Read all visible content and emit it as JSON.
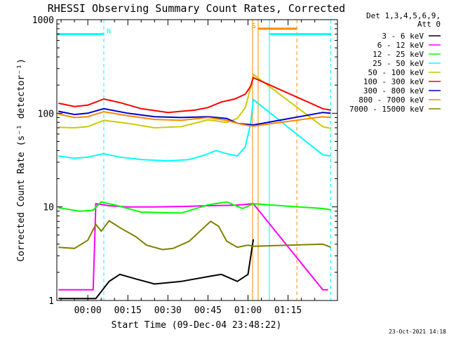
{
  "title": "RHESSI Observing Summary Count Rates, Corrected",
  "legend_header": [
    "Det 1,3,4,5,6,9,",
    "Att 0"
  ],
  "timestamp": "23-Oct-2021 14:18",
  "chart_data": {
    "type": "line",
    "title": "RHESSI Observing Summary Count Rates, Corrected",
    "xlabel": "Start Time (09-Dec-04 23:48:22)",
    "ylabel": "Corrected Count Rate (s⁻¹ detector⁻¹)",
    "yscale": "log",
    "ylim": [
      1,
      1000
    ],
    "y_ticks": [
      "1",
      "10",
      "100",
      "1000"
    ],
    "xlim_minutes": [
      -11.6,
      93.5
    ],
    "x_tick_minutes": [
      0,
      15,
      30,
      45,
      60,
      75
    ],
    "x_tick_labels": [
      "00:00",
      "00:15",
      "00:30",
      "00:45",
      "01:00",
      "01:15"
    ],
    "grid": false,
    "legend_position": "right",
    "series": [
      {
        "name": "3 - 6 keV",
        "color": "#000000",
        "x": [
          -11,
          -4,
          3,
          8,
          12,
          18,
          25,
          35,
          45,
          50,
          56,
          60,
          62
        ],
        "y": [
          1.05,
          1.05,
          1.05,
          1.6,
          1.9,
          1.7,
          1.5,
          1.6,
          1.8,
          1.9,
          1.6,
          1.9,
          4.5
        ]
      },
      {
        "name": "6 - 12 keV",
        "color": "#ff00ff",
        "x": [
          -11,
          2,
          3,
          8,
          15,
          25,
          35,
          45,
          55,
          62,
          88,
          90
        ],
        "y": [
          1.3,
          1.3,
          10.8,
          10.3,
          10.0,
          10.0,
          10.1,
          10.3,
          10.4,
          10.8,
          1.3,
          1.3
        ]
      },
      {
        "name": "12 - 25 keV",
        "color": "#00ff00",
        "x": [
          -11,
          -3,
          2,
          5,
          10,
          20,
          35,
          45,
          52,
          58,
          62,
          88,
          91
        ],
        "y": [
          9.8,
          9.0,
          9.2,
          11.3,
          10.5,
          8.8,
          8.6,
          10.5,
          11.3,
          9.6,
          10.8,
          9.6,
          9.3
        ]
      },
      {
        "name": "25 - 50 keV",
        "color": "#00ffff",
        "x": [
          -11,
          -5,
          0,
          6,
          12,
          20,
          30,
          38,
          44,
          48,
          52,
          56,
          59,
          61,
          62,
          88,
          91
        ],
        "y": [
          35,
          33,
          34,
          37,
          34,
          32,
          31,
          32,
          36,
          40,
          37,
          35,
          44,
          78,
          140,
          36,
          35
        ]
      },
      {
        "name": "50 - 100 keV",
        "color": "#cccc00",
        "x": [
          -11,
          -5,
          0,
          6,
          15,
          25,
          35,
          45,
          52,
          56,
          59,
          61,
          62,
          88,
          91
        ],
        "y": [
          71,
          70,
          72,
          84,
          78,
          70,
          72,
          85,
          80,
          88,
          115,
          190,
          260,
          72,
          69
        ]
      },
      {
        "name": "100 - 300 keV",
        "color": "#ff0000",
        "x": [
          -11,
          -5,
          0,
          6,
          12,
          20,
          30,
          40,
          45,
          50,
          55,
          59,
          61,
          62,
          88,
          91
        ],
        "y": [
          128,
          118,
          122,
          142,
          130,
          112,
          102,
          108,
          115,
          132,
          142,
          160,
          195,
          240,
          112,
          108
        ]
      },
      {
        "name": "300 - 800 keV",
        "color": "#0000cc",
        "x": [
          -11,
          -5,
          0,
          6,
          15,
          25,
          35,
          45,
          52,
          56,
          60,
          62,
          88,
          91
        ],
        "y": [
          105,
          97,
          100,
          112,
          100,
          92,
          90,
          92,
          88,
          78,
          76,
          75,
          102,
          100
        ]
      },
      {
        "name": "800 - 7000 keV",
        "color": "#ff8800",
        "x": [
          -11,
          -5,
          0,
          6,
          15,
          25,
          35,
          45,
          52,
          56,
          60,
          62,
          88,
          91
        ],
        "y": [
          98,
          90,
          92,
          104,
          94,
          86,
          84,
          90,
          84,
          78,
          74,
          73,
          92,
          90
        ]
      },
      {
        "name": "7000 - 15000 keV",
        "color": "#808000",
        "x": [
          -11,
          -5,
          0,
          3,
          5,
          8,
          12,
          18,
          22,
          28,
          32,
          38,
          42,
          46,
          49,
          52,
          56,
          60,
          62,
          88,
          91
        ],
        "y": [
          3.7,
          3.6,
          4.4,
          6.5,
          5.5,
          7.1,
          6.0,
          4.8,
          3.9,
          3.5,
          3.6,
          4.3,
          5.5,
          7.0,
          6.2,
          4.3,
          3.7,
          3.9,
          3.8,
          4.0,
          3.7
        ]
      }
    ],
    "markers": [
      {
        "label": "N",
        "color": "#00ffff",
        "x_start": -11.6,
        "x_end": 6.0,
        "level": 700
      },
      {
        "label": "S",
        "color": "#ff8800",
        "x_start": 63.8,
        "x_end": 78.3,
        "level": 800
      },
      {
        "label": "",
        "color": "#00ffff",
        "x_start": 68.0,
        "x_end": 91.0,
        "level": 700
      }
    ],
    "vertical_lines": [
      {
        "x": 6.0,
        "color": "#00ffff",
        "style": "dashed"
      },
      {
        "x": 91.0,
        "color": "#00ffff",
        "style": "dashed"
      },
      {
        "x": 61.7,
        "color": "#ff8800",
        "style": "solid"
      },
      {
        "x": 63.8,
        "color": "#ff8800",
        "style": "solid"
      },
      {
        "x": 78.3,
        "color": "#ff8800",
        "style": "dashed"
      },
      {
        "x": 68.0,
        "color": "#00ffff",
        "style": "solid"
      }
    ]
  }
}
